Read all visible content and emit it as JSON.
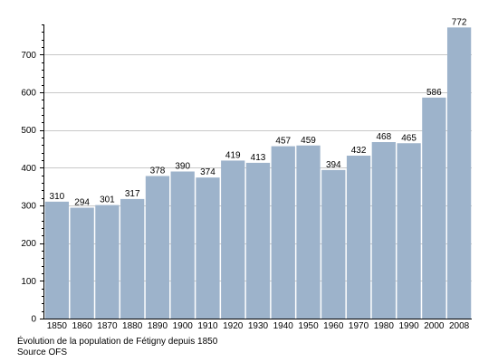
{
  "chart_data": {
    "type": "bar",
    "categories": [
      "1850",
      "1860",
      "1870",
      "1880",
      "1890",
      "1900",
      "1910",
      "1920",
      "1930",
      "1940",
      "1950",
      "1960",
      "1970",
      "1980",
      "1990",
      "2000",
      "2008"
    ],
    "values": [
      310,
      294,
      301,
      317,
      378,
      390,
      374,
      419,
      413,
      457,
      459,
      394,
      432,
      468,
      465,
      586,
      772
    ],
    "yticks": [
      0,
      100,
      200,
      300,
      400,
      500,
      600,
      700
    ],
    "ylim": [
      0,
      780
    ],
    "grid": true,
    "bar_color": "#9db3cb",
    "grid_color": "#c8c8c8"
  },
  "caption": {
    "line1": "Évolution de la population de Fétigny depuis 1850",
    "line2": "Source OFS"
  }
}
